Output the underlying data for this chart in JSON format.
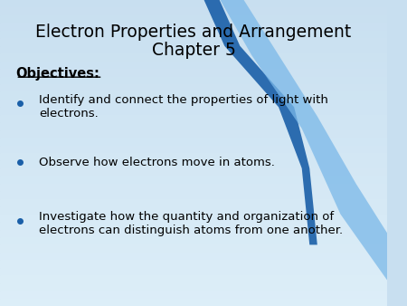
{
  "title_line1": "Electron Properties and Arrangement",
  "title_line2": "Chapter 5",
  "objectives_label": "Objectives:",
  "bullet1_line1": "Identify and connect the properties of light with",
  "bullet1_line2": "electrons.",
  "bullet2": "Observe how electrons move in atoms.",
  "bullet3_line1": "Investigate how the quantity and organization of",
  "bullet3_line2": "electrons can distinguish atoms from one another.",
  "bg_color_top": "#c8dff0",
  "bg_color_bottom": "#ddeef8",
  "text_color": "#000000",
  "bullet_color": "#1a5fa8",
  "title_color": "#000000",
  "objectives_color": "#000000",
  "swoosh_dark": "#1a5fa8",
  "swoosh_light": "#7ab8e8"
}
